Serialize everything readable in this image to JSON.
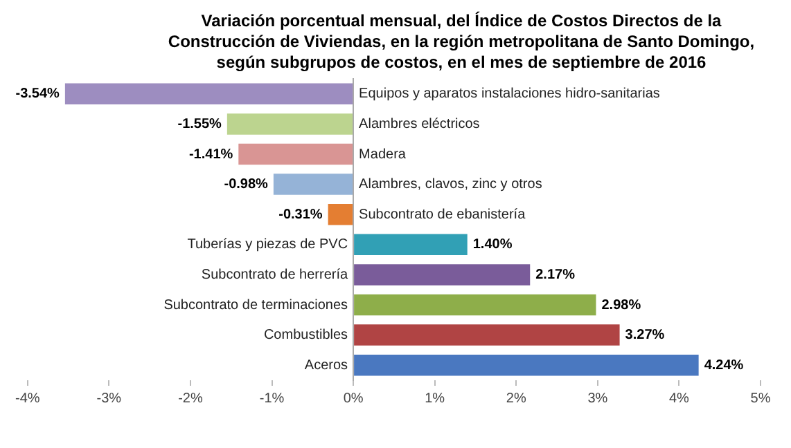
{
  "chart_data": {
    "type": "bar",
    "orientation": "horizontal",
    "title": "Variación porcentual mensual, del Índice de Costos Directos de la Construcción de Viviendas, en la región metropolitana de Santo Domingo, según subgrupos de costos, en el mes de septiembre de 2016",
    "categories": [
      "Equipos y aparatos instalaciones hidro-sanitarias",
      "Alambres eléctricos",
      "Madera",
      "Alambres, clavos, zinc y otros",
      "Subcontrato de ebanistería",
      "Tuberías y piezas de PVC",
      "Subcontrato de herrería",
      "Subcontrato de terminaciones",
      "Combustibles",
      "Aceros"
    ],
    "values": [
      -3.54,
      -1.55,
      -1.41,
      -0.98,
      -0.31,
      1.4,
      2.17,
      2.98,
      3.27,
      4.24
    ],
    "value_labels": [
      "-3.54%",
      "-1.55%",
      "-1.41%",
      "-0.98%",
      "-0.31%",
      "1.40%",
      "2.17%",
      "2.98%",
      "3.27%",
      "4.24%"
    ],
    "colors": [
      "#9d8dc0",
      "#bcd48f",
      "#d99594",
      "#95b3d7",
      "#e47e32",
      "#31a0b5",
      "#7a5c9a",
      "#8eae4a",
      "#b04444",
      "#4a78c0"
    ],
    "xlim": [
      -4,
      5
    ],
    "xticks": [
      {
        "value": -4,
        "label": "-4%"
      },
      {
        "value": -3,
        "label": "-3%"
      },
      {
        "value": -2,
        "label": "-2%"
      },
      {
        "value": -1,
        "label": "-1%"
      },
      {
        "value": 0,
        "label": "0%"
      },
      {
        "value": 1,
        "label": "1%"
      },
      {
        "value": 2,
        "label": "2%"
      },
      {
        "value": 3,
        "label": "3%"
      },
      {
        "value": 4,
        "label": "4%"
      },
      {
        "value": 5,
        "label": "5%"
      }
    ],
    "grid": false,
    "legend": false
  }
}
